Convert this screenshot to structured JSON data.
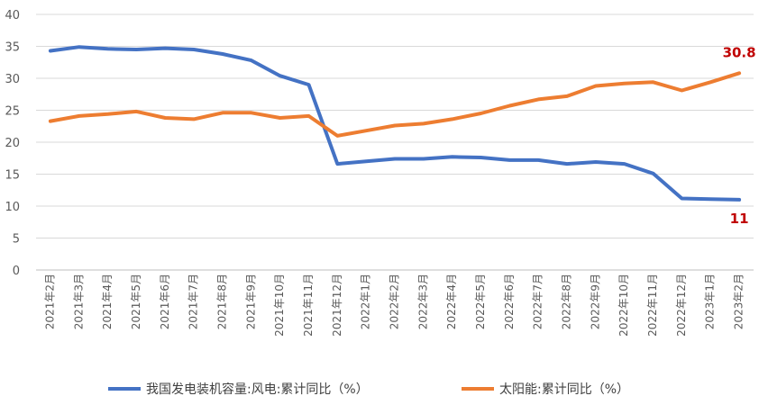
{
  "chart_data": {
    "type": "line",
    "title": "",
    "xlabel": "",
    "ylabel": "",
    "ylim": [
      0,
      40
    ],
    "yticks": [
      0,
      5,
      10,
      15,
      20,
      25,
      30,
      35,
      40
    ],
    "grid": true,
    "legend": "bottom",
    "categories": [
      "2021年2月",
      "2021年3月",
      "2021年4月",
      "2021年5月",
      "2021年6月",
      "2021年7月",
      "2021年8月",
      "2021年9月",
      "2021年10月",
      "2021年11月",
      "2021年12月",
      "2022年1月",
      "2022年2月",
      "2022年3月",
      "2022年4月",
      "2022年5月",
      "2022年6月",
      "2022年7月",
      "2022年8月",
      "2022年9月",
      "2022年10月",
      "2022年11月",
      "2022年12月",
      "2023年1月",
      "2023年2月"
    ],
    "series": [
      {
        "name": "我国发电装机容量:风电:累计同比（%）",
        "color": "#4472C4",
        "values": [
          34.3,
          34.9,
          34.6,
          34.5,
          34.7,
          34.5,
          33.8,
          32.8,
          30.4,
          29.0,
          16.6,
          17.0,
          17.4,
          17.4,
          17.7,
          17.6,
          17.2,
          17.2,
          16.6,
          16.9,
          16.6,
          15.1,
          11.2,
          11.1,
          11.0
        ],
        "end_label": "11"
      },
      {
        "name": "太阳能:累计同比（%）",
        "color": "#ED7D31",
        "values": [
          23.3,
          24.1,
          24.4,
          24.8,
          23.8,
          23.6,
          24.6,
          24.6,
          23.8,
          24.1,
          21.0,
          21.8,
          22.6,
          22.9,
          23.6,
          24.5,
          25.7,
          26.7,
          27.2,
          28.8,
          29.2,
          29.4,
          28.1,
          29.4,
          30.8
        ],
        "end_label": "30.8"
      }
    ],
    "end_label_color": "#C00000"
  }
}
